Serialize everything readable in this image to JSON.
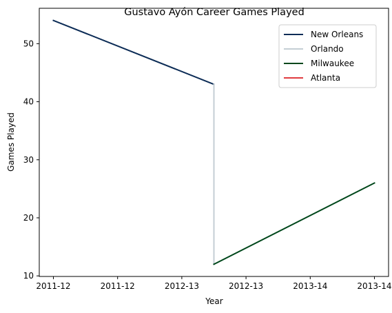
{
  "chart_data": {
    "type": "line",
    "title": "Gustavo Ayón Career Games Played",
    "xlabel": "Year",
    "ylabel": "Games Played",
    "x_tick_labels": [
      "2011-12",
      "2011-12",
      "2012-13",
      "2012-13",
      "2013-14",
      "2013-14"
    ],
    "x_tick_values": [
      0,
      1,
      2,
      3,
      4,
      5
    ],
    "xlim": [
      -0.22,
      5.22
    ],
    "y_ticks": [
      10,
      20,
      30,
      40,
      50
    ],
    "ylim": [
      9.9,
      56.1
    ],
    "grid": false,
    "legend_position": "upper right",
    "series": [
      {
        "name": "New Orleans",
        "color": "#0c2c56",
        "x": [
          0,
          2.5
        ],
        "y": [
          54,
          43
        ]
      },
      {
        "name": "Orlando",
        "color": "#c4ced4",
        "x": [
          2.5,
          2.5
        ],
        "y": [
          43,
          12
        ]
      },
      {
        "name": "Milwaukee",
        "color": "#00471b",
        "x": [
          2.5,
          5
        ],
        "y": [
          12,
          26
        ]
      },
      {
        "name": "Atlanta",
        "color": "#e03a3e",
        "x": [],
        "y": []
      }
    ]
  }
}
